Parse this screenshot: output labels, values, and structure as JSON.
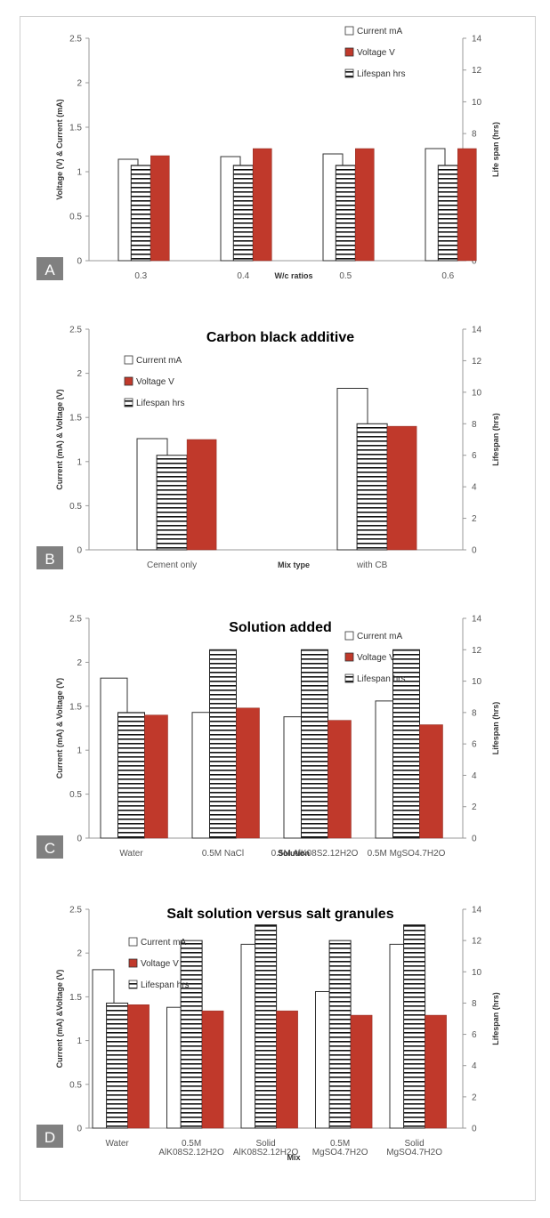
{
  "colors": {
    "current": "#ffffff",
    "voltage": "#c0392b",
    "lifespan": "#ffffff",
    "axis": "#999999",
    "label_box": "#808080"
  },
  "legend": {
    "current": "Current mA",
    "voltage": "Voltage V",
    "lifespan": "Lifespan hrs"
  },
  "chart_data": [
    {
      "panel": "A",
      "type": "bar",
      "title": "",
      "xlabel": "W/c ratios",
      "ylabel": "Voltage (V) & Current (mA)",
      "y2label": "Life span (hrs)",
      "ylim": [
        0,
        2.5
      ],
      "y2lim": [
        0,
        14
      ],
      "yticks": [
        "0",
        "0.5",
        "1",
        "1.5",
        "2",
        "2.5"
      ],
      "y2ticks": [
        "0",
        "2",
        "4",
        "6",
        "8",
        "10",
        "12",
        "14"
      ],
      "categories": [
        [
          "0.3"
        ],
        [
          "0.4"
        ],
        [
          "0.5"
        ],
        [
          "0.6"
        ]
      ],
      "series": [
        {
          "name": "Current mA",
          "values": [
            1.14,
            1.17,
            1.2,
            1.26
          ]
        },
        {
          "name": "Voltage V",
          "values": [
            1.18,
            1.26,
            1.26,
            1.26
          ]
        },
        {
          "name": "Lifespan hrs",
          "axis": "right",
          "values": [
            6,
            6,
            6,
            6
          ]
        }
      ]
    },
    {
      "panel": "B",
      "type": "bar",
      "title": "Carbon black additive",
      "xlabel": "Mix type",
      "ylabel": "Current (mA) & Voltage (V)",
      "y2label": "Lifespan (hrs)",
      "ylim": [
        0,
        2.5
      ],
      "y2lim": [
        0,
        14
      ],
      "yticks": [
        "0",
        "0.5",
        "1",
        "1.5",
        "2",
        "2.5"
      ],
      "y2ticks": [
        "0",
        "2",
        "4",
        "6",
        "8",
        "10",
        "12",
        "14"
      ],
      "categories": [
        [
          "Cement only"
        ],
        [
          "with CB"
        ]
      ],
      "series": [
        {
          "name": "Current mA",
          "values": [
            1.26,
            1.83
          ]
        },
        {
          "name": "Voltage V",
          "values": [
            1.25,
            1.4
          ]
        },
        {
          "name": "Lifespan hrs",
          "axis": "right",
          "values": [
            6,
            8
          ]
        }
      ]
    },
    {
      "panel": "C",
      "type": "bar",
      "title": "Solution added",
      "xlabel": "Solution",
      "ylabel": "Current (mA) & Voltage (V)",
      "y2label": "Lifespan (hrs)",
      "ylim": [
        0,
        2.5
      ],
      "y2lim": [
        0,
        14
      ],
      "yticks": [
        "0",
        "0.5",
        "1",
        "1.5",
        "2",
        "2.5"
      ],
      "y2ticks": [
        "0",
        "2",
        "4",
        "6",
        "8",
        "10",
        "12",
        "14"
      ],
      "categories": [
        [
          "Water"
        ],
        [
          "0.5M NaCl"
        ],
        [
          "0.5M AlK08S2.12H2O"
        ],
        [
          "0.5M MgSO4.7H2O"
        ]
      ],
      "series": [
        {
          "name": "Current mA",
          "values": [
            1.82,
            1.43,
            1.38,
            1.56
          ]
        },
        {
          "name": "Voltage V",
          "values": [
            1.4,
            1.48,
            1.34,
            1.29
          ]
        },
        {
          "name": "Lifespan hrs",
          "axis": "right",
          "values": [
            8,
            12,
            12,
            12
          ]
        }
      ]
    },
    {
      "panel": "D",
      "type": "bar",
      "title": "Salt solution versus salt granules",
      "xlabel": "Mix",
      "ylabel": "Current (mA) &Voltage (V)",
      "y2label": "Lifespan (hrs)",
      "ylim": [
        0,
        2.5
      ],
      "y2lim": [
        0,
        14
      ],
      "yticks": [
        "0",
        "0.5",
        "1",
        "1.5",
        "2",
        "2.5"
      ],
      "y2ticks": [
        "0",
        "2",
        "4",
        "6",
        "8",
        "10",
        "12",
        "14"
      ],
      "categories": [
        [
          "Water"
        ],
        [
          "0.5M",
          "AlK08S2.12H2O"
        ],
        [
          "Solid",
          "AlK08S2.12H2O"
        ],
        [
          "0.5M",
          "MgSO4.7H2O"
        ],
        [
          "Solid",
          "MgSO4.7H2O"
        ]
      ],
      "series": [
        {
          "name": "Current mA",
          "values": [
            1.81,
            1.38,
            2.1,
            1.56,
            2.1
          ]
        },
        {
          "name": "Voltage V",
          "values": [
            1.41,
            1.34,
            1.34,
            1.29,
            1.29
          ]
        },
        {
          "name": "Lifespan hrs",
          "axis": "right",
          "values": [
            8,
            12,
            13,
            12,
            13
          ]
        }
      ]
    }
  ]
}
